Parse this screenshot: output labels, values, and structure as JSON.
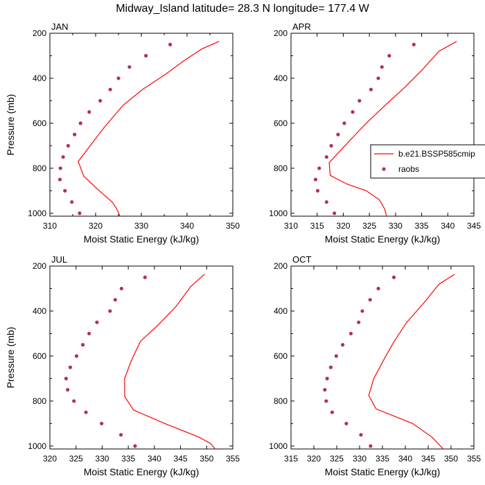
{
  "title": "Midway_Island  latitude= 28.3 N longitude= 177.4 W",
  "colors": {
    "model": "#ff0000",
    "obs": "#b03060",
    "axis": "#000000"
  },
  "legend": {
    "model_label": "b.e21.BSSP585cmip",
    "obs_label": "raobs",
    "placement": "right of APR panel"
  },
  "chart_data": [
    {
      "type": "line",
      "panel_label": "JAN",
      "xlabel": "Moist Static Energy (kJ/kg)",
      "ylabel": "Pressure (mb)",
      "xlim": [
        310,
        350
      ],
      "ylim": [
        1013,
        200
      ],
      "y_inverted": true,
      "xticks": [
        310,
        315,
        320,
        325,
        330,
        335,
        340,
        345,
        350
      ],
      "xtick_labels": [
        "310",
        "",
        "320",
        "",
        "330",
        "",
        "340",
        "",
        "350"
      ],
      "yticks": [
        200,
        300,
        400,
        500,
        600,
        700,
        800,
        900,
        1000
      ],
      "ytick_labels": [
        "200",
        "",
        "400",
        "",
        "600",
        "",
        "800",
        "",
        "1000"
      ],
      "series": [
        {
          "name": "b.e21.BSSP585cmip",
          "style": "line",
          "x": [
            347.0,
            343.2,
            339.2,
            335.3,
            330.4,
            326.0,
            321.9,
            318.8,
            316.2,
            317.4,
            320.8,
            323.6,
            324.6,
            325.3
          ],
          "y": [
            236,
            270,
            324,
            382,
            448,
            520,
            618,
            700,
            770,
            835,
            900,
            950,
            980,
            1013
          ]
        },
        {
          "name": "raobs",
          "style": "markers",
          "x": [
            336.3,
            331.0,
            327.4,
            325.0,
            323.2,
            321.0,
            318.6,
            316.7,
            315.4,
            314.0,
            312.9,
            312.3,
            312.2,
            313.3,
            314.8,
            316.5
          ],
          "y": [
            250,
            300,
            350,
            400,
            450,
            500,
            550,
            600,
            650,
            700,
            750,
            800,
            850,
            900,
            950,
            1000
          ]
        }
      ]
    },
    {
      "type": "line",
      "panel_label": "APR",
      "xlabel": "Moist Static Energy (kJ/kg)",
      "ylabel": "",
      "xlim": [
        310,
        345
      ],
      "ylim": [
        1013,
        200
      ],
      "y_inverted": true,
      "xticks": [
        310,
        315,
        320,
        325,
        330,
        335,
        340,
        345
      ],
      "xtick_labels": [
        "310",
        "315",
        "320",
        "325",
        "330",
        "335",
        "340",
        "345"
      ],
      "yticks": [
        200,
        300,
        400,
        500,
        600,
        700,
        800,
        900,
        1000
      ],
      "ytick_labels": [
        "200",
        "",
        "400",
        "",
        "600",
        "",
        "800",
        "",
        "1000"
      ],
      "series": [
        {
          "name": "b.e21.BSSP585cmip",
          "style": "line",
          "x": [
            341.7,
            338.3,
            335.0,
            331.8,
            328.0,
            324.4,
            320.3,
            317.3,
            317.5,
            320.7,
            324.4,
            326.9,
            327.9,
            328.3
          ],
          "y": [
            236,
            280,
            365,
            440,
            520,
            600,
            700,
            775,
            832,
            870,
            900,
            940,
            980,
            1013
          ]
        },
        {
          "name": "raobs",
          "style": "markers",
          "x": [
            333.5,
            328.8,
            327.4,
            326.7,
            325.3,
            323.1,
            321.8,
            320.2,
            319.0,
            317.7,
            316.8,
            315.4,
            314.7,
            315.1,
            316.8,
            318.3
          ],
          "y": [
            250,
            300,
            350,
            400,
            450,
            500,
            550,
            600,
            650,
            700,
            750,
            800,
            850,
            900,
            950,
            1000
          ]
        }
      ]
    },
    {
      "type": "line",
      "panel_label": "JUL",
      "xlabel": "Moist Static Energy (kJ/kg)",
      "ylabel": "Pressure (mb)",
      "xlim": [
        320,
        355
      ],
      "ylim": [
        1013,
        200
      ],
      "y_inverted": true,
      "xticks": [
        320,
        325,
        330,
        335,
        340,
        345,
        350,
        355
      ],
      "xtick_labels": [
        "320",
        "325",
        "330",
        "335",
        "340",
        "345",
        "350",
        "355"
      ],
      "yticks": [
        200,
        300,
        400,
        500,
        600,
        700,
        800,
        900,
        1000
      ],
      "ytick_labels": [
        "200",
        "",
        "400",
        "",
        "600",
        "",
        "800",
        "",
        "1000"
      ],
      "series": [
        {
          "name": "b.e21.BSSP585cmip",
          "style": "line",
          "x": [
            349.6,
            347.0,
            344.1,
            340.8,
            337.3,
            335.5,
            334.3,
            334.3,
            336.0,
            342.0,
            348.5,
            350.8,
            351.6
          ],
          "y": [
            236,
            290,
            380,
            460,
            535,
            625,
            700,
            780,
            840,
            900,
            960,
            990,
            1013
          ]
        },
        {
          "name": "raobs",
          "style": "markers",
          "x": [
            338.2,
            333.7,
            332.5,
            331.5,
            329.0,
            327.5,
            326.3,
            325.1,
            323.9,
            323.1,
            323.4,
            324.6,
            326.9,
            329.9,
            333.6,
            336.3
          ],
          "y": [
            250,
            300,
            350,
            400,
            450,
            500,
            550,
            600,
            650,
            700,
            750,
            800,
            850,
            900,
            950,
            1000
          ]
        }
      ]
    },
    {
      "type": "line",
      "panel_label": "OCT",
      "xlabel": "Moist Static Energy (kJ/kg)",
      "ylabel": "",
      "xlim": [
        315,
        355
      ],
      "ylim": [
        1013,
        200
      ],
      "y_inverted": true,
      "xticks": [
        315,
        320,
        325,
        330,
        335,
        340,
        345,
        350,
        355
      ],
      "xtick_labels": [
        "315",
        "320",
        "325",
        "330",
        "335",
        "340",
        "345",
        "350",
        "355"
      ],
      "yticks": [
        200,
        300,
        400,
        500,
        600,
        700,
        800,
        900,
        1000
      ],
      "ytick_labels": [
        "200",
        "",
        "400",
        "",
        "600",
        "",
        "800",
        "",
        "1000"
      ],
      "series": [
        {
          "name": "b.e21.BSSP585cmip",
          "style": "line",
          "x": [
            350.8,
            347.4,
            344.0,
            340.3,
            337.4,
            335.2,
            333.1,
            332.0,
            333.6,
            341.6,
            345.8,
            348.3
          ],
          "y": [
            236,
            280,
            365,
            450,
            540,
            620,
            700,
            775,
            835,
            900,
            960,
            1013
          ]
        },
        {
          "name": "raobs",
          "style": "markers",
          "x": [
            337.5,
            334.1,
            332.3,
            330.6,
            329.8,
            328.1,
            326.3,
            324.9,
            323.7,
            322.9,
            322.4,
            322.7,
            324.0,
            327.1,
            330.3,
            332.4
          ],
          "y": [
            250,
            300,
            350,
            400,
            450,
            500,
            550,
            600,
            650,
            700,
            750,
            800,
            850,
            900,
            950,
            1000
          ]
        }
      ]
    }
  ]
}
